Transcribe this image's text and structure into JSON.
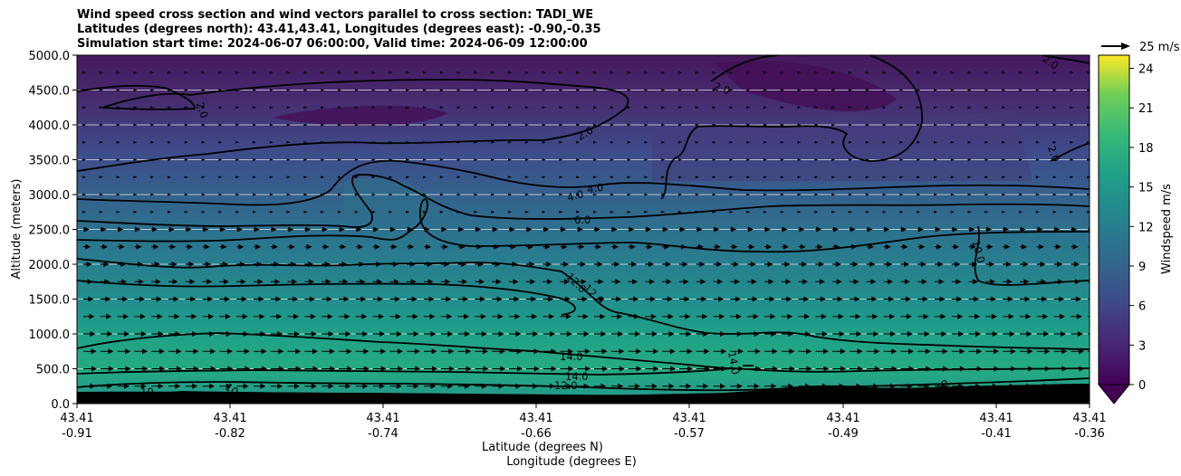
{
  "chart_data": {
    "type": "heatmap",
    "title_lines": [
      "Wind speed cross section and wind vectors parallel to cross section: TADI_WE",
      "Latitudes (degrees north): 43.41,43.41, Longitudes (degrees east): -0.90,-0.35",
      "Simulation start time: 2024-06-07 06:00:00, Valid time: 2024-06-09 12:00:00"
    ],
    "ylabel": "Altitude (meters)",
    "xlabel_lat": "Latitude (degrees N)",
    "xlabel_lon": "Longitude (degrees E)",
    "ylim": [
      0,
      5000
    ],
    "y_ticks": [
      "0.0",
      "500.0",
      "1000.0",
      "1500.0",
      "2000.0",
      "2500.0",
      "3000.0",
      "3500.0",
      "4000.0",
      "4500.0",
      "5000.0"
    ],
    "x_ticks": [
      {
        "lat": "43.41",
        "lon": "-0.91"
      },
      {
        "lat": "43.41",
        "lon": "-0.82"
      },
      {
        "lat": "43.41",
        "lon": "-0.74"
      },
      {
        "lat": "43.41",
        "lon": "-0.66"
      },
      {
        "lat": "43.41",
        "lon": "-0.57"
      },
      {
        "lat": "43.41",
        "lon": "-0.49"
      },
      {
        "lat": "43.41",
        "lon": "-0.41"
      },
      {
        "lat": "43.41",
        "lon": "-0.36"
      }
    ],
    "colorbar": {
      "label": "Windspeed m/s",
      "range": [
        0,
        25
      ],
      "ticks": [
        "0",
        "3",
        "6",
        "9",
        "12",
        "15",
        "18",
        "21",
        "24"
      ],
      "extend": "min"
    },
    "quiver_key": "25 m/s",
    "contour_labels": [
      "2.0",
      "2.0",
      "2.0",
      "2.0",
      "2.0",
      "4.0",
      "4.0",
      "6.0",
      "10.0",
      "12.0",
      "12.0",
      "14.0",
      "14.0",
      "14.0",
      "12.0",
      "10",
      "10",
      "12"
    ],
    "windspeed_profile": [
      {
        "altitude": 0,
        "speed": 9
      },
      {
        "altitude": 300,
        "speed": 15
      },
      {
        "altitude": 600,
        "speed": 16
      },
      {
        "altitude": 1000,
        "speed": 14
      },
      {
        "altitude": 1500,
        "speed": 12
      },
      {
        "altitude": 2000,
        "speed": 10
      },
      {
        "altitude": 2500,
        "speed": 7
      },
      {
        "altitude": 3000,
        "speed": 5
      },
      {
        "altitude": 3500,
        "speed": 3
      },
      {
        "altitude": 4000,
        "speed": 2
      },
      {
        "altitude": 5000,
        "speed": 2
      }
    ],
    "colors": {
      "viridis_low": "#440154",
      "viridis_mid": "#21918c",
      "viridis_high": "#fde725",
      "terrain": "#000000",
      "contour": "#000000",
      "grid": "#ffffff"
    }
  }
}
